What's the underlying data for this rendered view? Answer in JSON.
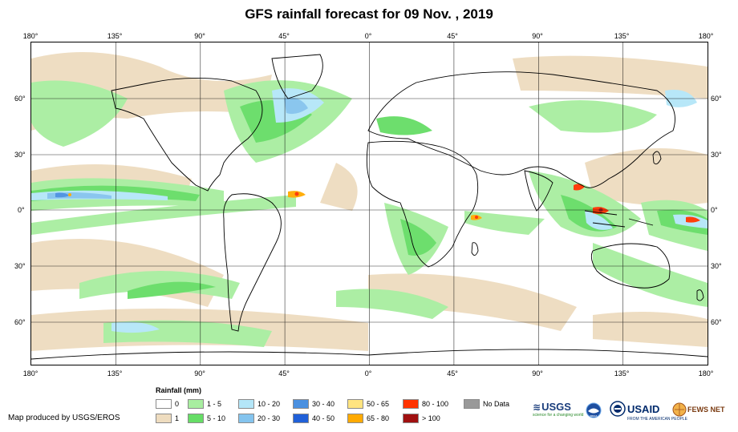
{
  "title": "GFS rainfall forecast for 09 Nov. , 2019",
  "lon_labels": [
    "180°",
    "135°",
    "90°",
    "45°",
    "0°",
    "45°",
    "90°",
    "135°",
    "180°"
  ],
  "lat_labels": [
    "60°",
    "30°",
    "0°",
    "30°",
    "60°"
  ],
  "legend": {
    "title": "Rainfall (mm)",
    "items": [
      {
        "label": "0",
        "color": "#ffffff"
      },
      {
        "label": "1",
        "color": "#eedcbf"
      },
      {
        "label": "1 - 5",
        "color": "#a8eea0"
      },
      {
        "label": "5 - 10",
        "color": "#66dd66"
      },
      {
        "label": "10 - 20",
        "color": "#b4e6f8"
      },
      {
        "label": "20 - 30",
        "color": "#84c4ee"
      },
      {
        "label": "30 - 40",
        "color": "#4a90e0"
      },
      {
        "label": "40 - 50",
        "color": "#2060d8"
      },
      {
        "label": "50 - 65",
        "color": "#ffe480"
      },
      {
        "label": "65 - 80",
        "color": "#ffaa00"
      },
      {
        "label": "80 - 100",
        "color": "#ff3300"
      },
      {
        "label": "> 100",
        "color": "#a01010"
      },
      {
        "label": "No Data",
        "color": "#999999"
      }
    ]
  },
  "credit": "Map produced by USGS/EROS",
  "logos": {
    "usgs": "USGS",
    "usgs_tagline": "science for a changing world",
    "noaa": "NOAA",
    "usaid": "USAID",
    "usaid_tagline": "FROM THE AMERICAN PEOPLE",
    "fewsnet": "FEWS NET"
  }
}
